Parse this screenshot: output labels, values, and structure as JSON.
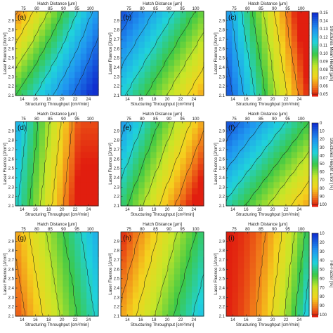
{
  "chart_data": [
    {
      "type": "heatmap",
      "panels": [
        {
          "label": "(a)",
          "x_title": "Structuring Throughput [cm²/min]",
          "top_title": "Hatch Distance [µm]",
          "y_title": "Laser Fluence [J/cm²]"
        },
        {
          "label": "(b)",
          "x_title": "Structuring Throughput [cm²/min]",
          "top_title": "Hatch Distance [µm]",
          "y_title": "Laser Fluence [J/cm²]"
        },
        {
          "label": "(c)",
          "x_title": "Structuring Throughput [cm²/min]",
          "top_title": "Hatch Distance [µm]",
          "y_title": "Laser Fluence [J/cm²]"
        }
      ],
      "colorbar": {
        "title": "Structures Mean Height [µm]",
        "ticks": [
          "0.15",
          "0.14",
          "0.13",
          "0.12",
          "0.11",
          "0.10",
          "0.09",
          "0.08",
          "0.07",
          "0.06",
          "0.05"
        ]
      },
      "x_ticks": [
        "14",
        "16",
        "18",
        "20",
        "22",
        "24"
      ],
      "top_ticks": [
        "75",
        "80",
        "85",
        "90",
        "95",
        "100"
      ],
      "y_ticks": [
        "2.1",
        "2.2",
        "2.3",
        "2.4",
        "2.5",
        "2.6",
        "2.7",
        "2.8",
        "2.9"
      ],
      "xlim": [
        13,
        25.5
      ],
      "ylim": [
        2.1,
        3.0
      ],
      "top_lim": [
        72,
        103
      ]
    },
    {
      "type": "heatmap",
      "panels": [
        {
          "label": "(d)",
          "x_title": "Structuring Throughput [cm²/min]",
          "top_title": "Hatch Distance [µm]",
          "y_title": "Laser Fluence [J/cm²]"
        },
        {
          "label": "(e)",
          "x_title": "Structuring Throughput [cm²/min]",
          "top_title": "Hatch Distance [µm]",
          "y_title": "Laser Fluence [J/cm²]"
        },
        {
          "label": "(f)",
          "x_title": "Structuring Throughput [cm²/min]",
          "top_title": "Hatch Distance [µm]",
          "y_title": "Laser Fluence [J/cm²]"
        }
      ],
      "colorbar": {
        "title": "Structures Height Error [%]",
        "ticks": [
          "0",
          "10",
          "20",
          "30",
          "40",
          "50",
          "60",
          "70",
          "80",
          "90",
          "100"
        ]
      },
      "x_ticks": [
        "14",
        "16",
        "18",
        "20",
        "22",
        "24"
      ],
      "top_ticks": [
        "75",
        "80",
        "85",
        "90",
        "95",
        "100"
      ],
      "y_ticks": [
        "2.1",
        "2.2",
        "2.3",
        "2.4",
        "2.5",
        "2.6",
        "2.7",
        "2.8",
        "2.9"
      ],
      "xlim": [
        13,
        25.5
      ],
      "ylim": [
        2.1,
        3.0
      ],
      "top_lim": [
        72,
        103
      ]
    },
    {
      "type": "heatmap",
      "panels": [
        {
          "label": "(g)",
          "x_title": "Structuring Throughput [cm²/min]",
          "top_title": "Hatch Distance [µm]",
          "y_title": "Laser Fluence [J/cm²]"
        },
        {
          "label": "(h)",
          "x_title": "Structuring Throughput [cm²/min]",
          "top_title": "Hatch Distance [µm]",
          "y_title": "Laser Fluence [J/cm²]"
        },
        {
          "label": "(i)",
          "x_title": "Structuring Throughput [cm²/min]",
          "top_title": "Hatch Distance [µm]",
          "y_title": "Laser Fluence [J/cm²]"
        }
      ],
      "colorbar": {
        "title": "Fill-Factor [%]",
        "ticks": [
          "10",
          "20",
          "30",
          "40",
          "50",
          "60",
          "70",
          "80",
          "90",
          "100"
        ]
      },
      "x_ticks": [
        "14",
        "16",
        "18",
        "20",
        "22",
        "24"
      ],
      "top_ticks": [
        "75",
        "80",
        "85",
        "90",
        "95",
        "100"
      ],
      "y_ticks": [
        "2.1",
        "2.2",
        "2.3",
        "2.4",
        "2.5",
        "2.6",
        "2.7",
        "2.8",
        "2.9"
      ],
      "xlim": [
        13,
        25.5
      ],
      "ylim": [
        2.1,
        3.0
      ],
      "top_lim": [
        72,
        103
      ]
    }
  ],
  "colors": {
    "blue": "#1030d0",
    "cyan": "#20c8e8",
    "green": "#30c040",
    "yellow": "#f0e020",
    "orange": "#f09020",
    "red": "#e02010"
  }
}
